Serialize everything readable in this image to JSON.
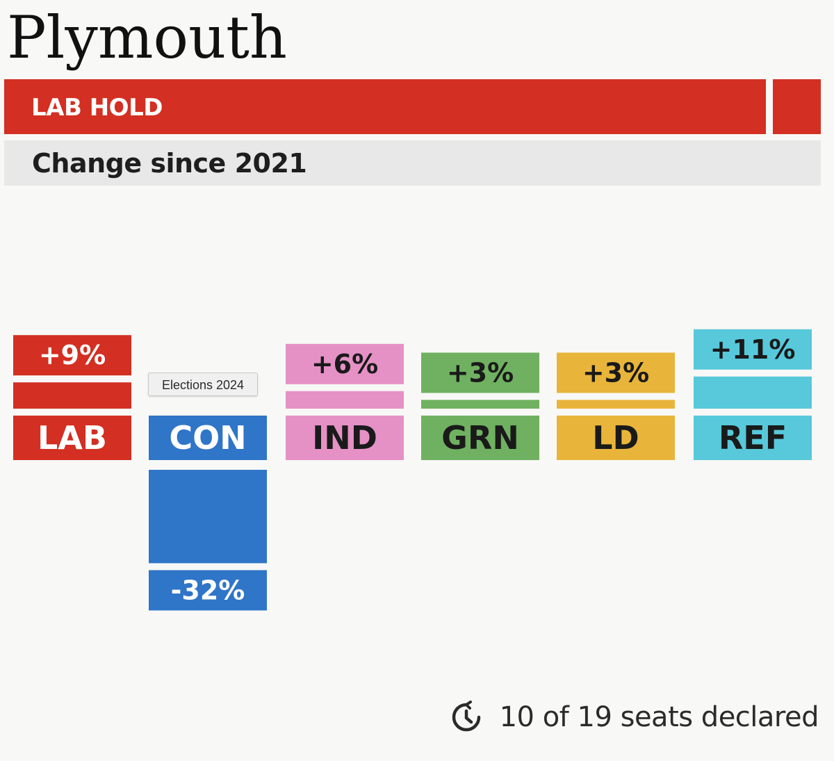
{
  "title": "Plymouth",
  "result": {
    "label": "LAB HOLD",
    "color": "#d32f22"
  },
  "subtitle": "Change since 2021",
  "chart_data": {
    "type": "bar",
    "title": "",
    "xlabel": "",
    "ylabel": "",
    "categories": [
      "LAB",
      "CON",
      "IND",
      "GRN",
      "LD",
      "REF"
    ],
    "values": [
      9,
      -32,
      6,
      3,
      3,
      11
    ],
    "value_labels": [
      "+9%",
      "-32%",
      "+6%",
      "+3%",
      "+3%",
      "+11%"
    ],
    "colors": [
      "#d32f22",
      "#2f75c8",
      "#e591c6",
      "#6fb160",
      "#e8b53a",
      "#57c9da"
    ],
    "label_text_colors": [
      "#ffffff",
      "#ffffff",
      "#1a1a1a",
      "#1a1a1a",
      "#1a1a1a",
      "#1a1a1a"
    ],
    "unit": "%",
    "grid": false,
    "legend": "none"
  },
  "tooltip": {
    "text": "Elections 2024"
  },
  "footer": {
    "icon": "clock-icon",
    "text": "10 of 19 seats declared"
  }
}
